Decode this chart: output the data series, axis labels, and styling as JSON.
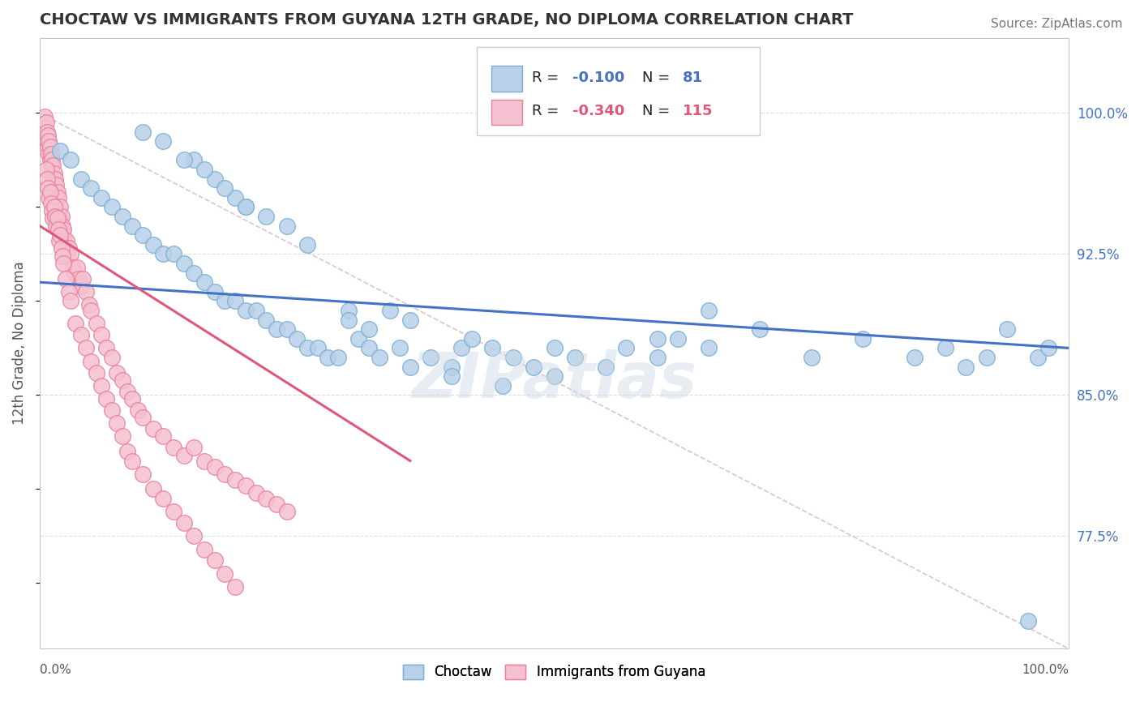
{
  "title": "CHOCTAW VS IMMIGRANTS FROM GUYANA 12TH GRADE, NO DIPLOMA CORRELATION CHART",
  "source": "Source: ZipAtlas.com",
  "ylabel": "12th Grade, No Diploma",
  "y_tick_labels": [
    "77.5%",
    "85.0%",
    "92.5%",
    "100.0%"
  ],
  "y_tick_values": [
    0.775,
    0.85,
    0.925,
    1.0
  ],
  "xlim": [
    0.0,
    1.0
  ],
  "ylim": [
    0.715,
    1.04
  ],
  "blue_color": "#b8d0e8",
  "blue_edge_color": "#7aafd4",
  "pink_color": "#f5c0d0",
  "pink_edge_color": "#e8829a",
  "R_blue": -0.1,
  "N_blue": 81,
  "R_pink": -0.34,
  "N_pink": 115,
  "trend_blue_color": "#4472c4",
  "trend_pink_color": "#e05878",
  "diag_color": "#ddbbcc",
  "watermark": "ZIPatlas",
  "watermark_color": "#ccd8e8",
  "blue_scatter_x": [
    0.02,
    0.03,
    0.04,
    0.05,
    0.06,
    0.07,
    0.08,
    0.09,
    0.1,
    0.11,
    0.12,
    0.13,
    0.14,
    0.15,
    0.16,
    0.17,
    0.18,
    0.19,
    0.2,
    0.21,
    0.22,
    0.23,
    0.24,
    0.25,
    0.26,
    0.27,
    0.28,
    0.29,
    0.3,
    0.31,
    0.32,
    0.33,
    0.35,
    0.36,
    0.38,
    0.4,
    0.41,
    0.42,
    0.44,
    0.46,
    0.48,
    0.5,
    0.52,
    0.55,
    0.57,
    0.6,
    0.62,
    0.65,
    0.3,
    0.32,
    0.34,
    0.36,
    0.2,
    0.22,
    0.24,
    0.26,
    0.15,
    0.17,
    0.19,
    0.1,
    0.12,
    0.14,
    0.16,
    0.18,
    0.2,
    0.6,
    0.65,
    0.7,
    0.75,
    0.8,
    0.85,
    0.88,
    0.9,
    0.92,
    0.94,
    0.96,
    0.97,
    0.98,
    0.4,
    0.45,
    0.5
  ],
  "blue_scatter_y": [
    0.98,
    0.975,
    0.965,
    0.96,
    0.955,
    0.95,
    0.945,
    0.94,
    0.935,
    0.93,
    0.925,
    0.925,
    0.92,
    0.915,
    0.91,
    0.905,
    0.9,
    0.9,
    0.895,
    0.895,
    0.89,
    0.885,
    0.885,
    0.88,
    0.875,
    0.875,
    0.87,
    0.87,
    0.895,
    0.88,
    0.875,
    0.87,
    0.875,
    0.865,
    0.87,
    0.865,
    0.875,
    0.88,
    0.875,
    0.87,
    0.865,
    0.875,
    0.87,
    0.865,
    0.875,
    0.87,
    0.88,
    0.875,
    0.89,
    0.885,
    0.895,
    0.89,
    0.95,
    0.945,
    0.94,
    0.93,
    0.975,
    0.965,
    0.955,
    0.99,
    0.985,
    0.975,
    0.97,
    0.96,
    0.95,
    0.88,
    0.895,
    0.885,
    0.87,
    0.88,
    0.87,
    0.875,
    0.865,
    0.87,
    0.885,
    0.73,
    0.87,
    0.875,
    0.86,
    0.855,
    0.86
  ],
  "pink_scatter_x": [
    0.005,
    0.005,
    0.006,
    0.007,
    0.007,
    0.008,
    0.008,
    0.009,
    0.009,
    0.01,
    0.01,
    0.011,
    0.011,
    0.012,
    0.012,
    0.013,
    0.013,
    0.014,
    0.014,
    0.015,
    0.015,
    0.016,
    0.016,
    0.017,
    0.018,
    0.018,
    0.019,
    0.02,
    0.02,
    0.021,
    0.022,
    0.022,
    0.023,
    0.024,
    0.025,
    0.026,
    0.027,
    0.028,
    0.03,
    0.032,
    0.034,
    0.036,
    0.038,
    0.04,
    0.042,
    0.045,
    0.048,
    0.05,
    0.055,
    0.06,
    0.065,
    0.07,
    0.075,
    0.08,
    0.085,
    0.09,
    0.095,
    0.1,
    0.11,
    0.12,
    0.13,
    0.14,
    0.15,
    0.16,
    0.17,
    0.18,
    0.19,
    0.2,
    0.21,
    0.22,
    0.23,
    0.24,
    0.006,
    0.007,
    0.008,
    0.009,
    0.01,
    0.011,
    0.012,
    0.013,
    0.014,
    0.015,
    0.016,
    0.017,
    0.018,
    0.019,
    0.02,
    0.021,
    0.022,
    0.023,
    0.025,
    0.028,
    0.03,
    0.035,
    0.04,
    0.045,
    0.05,
    0.055,
    0.06,
    0.065,
    0.07,
    0.075,
    0.08,
    0.085,
    0.09,
    0.1,
    0.11,
    0.12,
    0.13,
    0.14,
    0.15,
    0.16,
    0.17,
    0.18,
    0.19
  ],
  "pink_scatter_y": [
    0.998,
    0.992,
    0.995,
    0.99,
    0.985,
    0.988,
    0.982,
    0.985,
    0.978,
    0.982,
    0.975,
    0.978,
    0.972,
    0.975,
    0.968,
    0.972,
    0.965,
    0.968,
    0.962,
    0.965,
    0.958,
    0.962,
    0.955,
    0.958,
    0.955,
    0.948,
    0.945,
    0.95,
    0.942,
    0.945,
    0.94,
    0.935,
    0.938,
    0.932,
    0.928,
    0.932,
    0.925,
    0.928,
    0.925,
    0.918,
    0.915,
    0.918,
    0.912,
    0.908,
    0.912,
    0.905,
    0.898,
    0.895,
    0.888,
    0.882,
    0.875,
    0.87,
    0.862,
    0.858,
    0.852,
    0.848,
    0.842,
    0.838,
    0.832,
    0.828,
    0.822,
    0.818,
    0.822,
    0.815,
    0.812,
    0.808,
    0.805,
    0.802,
    0.798,
    0.795,
    0.792,
    0.788,
    0.97,
    0.965,
    0.96,
    0.955,
    0.958,
    0.952,
    0.948,
    0.944,
    0.95,
    0.945,
    0.94,
    0.944,
    0.938,
    0.932,
    0.935,
    0.928,
    0.924,
    0.92,
    0.912,
    0.905,
    0.9,
    0.888,
    0.882,
    0.875,
    0.868,
    0.862,
    0.855,
    0.848,
    0.842,
    0.835,
    0.828,
    0.82,
    0.815,
    0.808,
    0.8,
    0.795,
    0.788,
    0.782,
    0.775,
    0.768,
    0.762,
    0.755,
    0.748
  ],
  "blue_trend_x": [
    0.0,
    1.0
  ],
  "blue_trend_y": [
    0.91,
    0.875
  ],
  "pink_trend_x": [
    0.0,
    0.36
  ],
  "pink_trend_y": [
    0.94,
    0.815
  ]
}
